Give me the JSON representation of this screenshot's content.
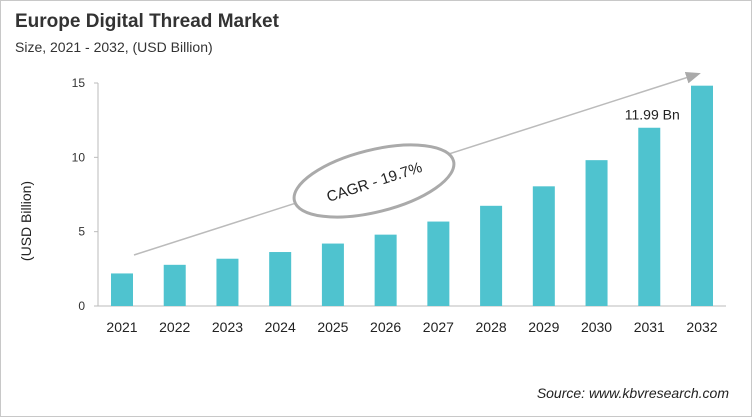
{
  "chart_data": {
    "type": "bar",
    "title": "Europe Digital Thread Market",
    "subtitle": "Size, 2021 - 2032, (USD Billion)",
    "ylabel": "(USD Billion)",
    "xlabel": "",
    "categories": [
      "2021",
      "2022",
      "2023",
      "2024",
      "2025",
      "2026",
      "2027",
      "2028",
      "2029",
      "2030",
      "2031",
      "2032"
    ],
    "values": [
      2.19,
      2.77,
      3.18,
      3.63,
      4.2,
      4.8,
      5.68,
      6.74,
      8.05,
      9.81,
      11.99,
      14.82
    ],
    "ylim": [
      0,
      15
    ],
    "yticks": [
      0,
      5,
      10,
      15
    ],
    "grid": false,
    "bar_color": "#4fc3cf",
    "annotations": {
      "cagr": "CAGR - 19.7%",
      "label_2031": "11.99 Bn"
    },
    "source": "Source: www.kbvresearch.com"
  }
}
